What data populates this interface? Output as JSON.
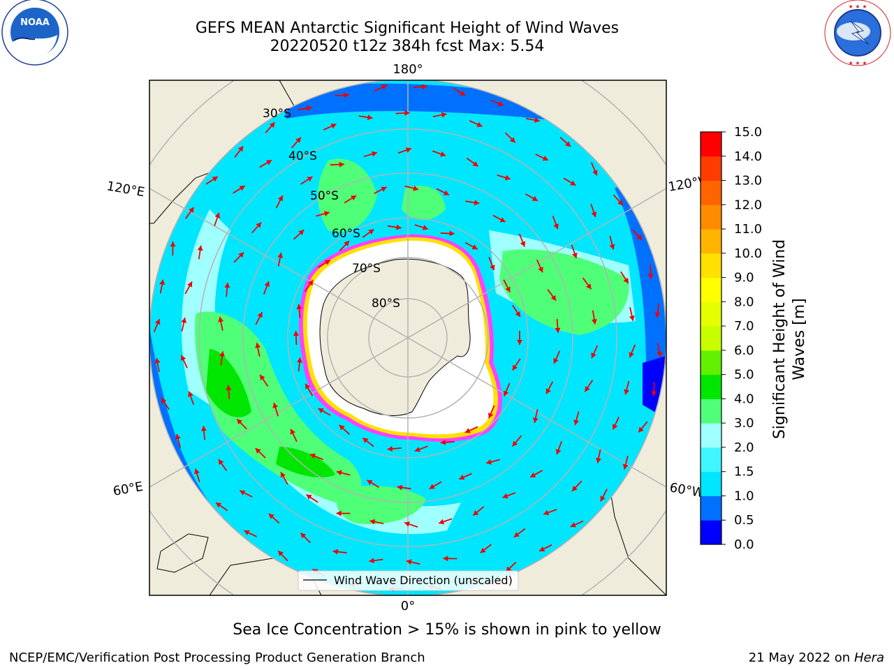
{
  "title": {
    "line1": "GEFS MEAN Antarctic Significant Height of Wind Waves",
    "line2": "20220520 t12z 384h fcst   Max: 5.54"
  },
  "logos": {
    "left": "NOAA",
    "left_ring": "NATIONAL OCEANIC AND ATMOSPHERIC ADMINISTRATION · U.S. DEPARTMENT OF COMMERCE",
    "right_ring": "NATIONAL WEATHER SERVICE"
  },
  "map": {
    "projection": "south-polar-stereographic",
    "lon_labels": {
      "top": "180°",
      "bottom": "0°",
      "left_upper": "120°E",
      "left_lower": "60°E",
      "right_upper": "120°W",
      "right_lower": "60°W"
    },
    "lat_labels": [
      "30°S",
      "40°S",
      "50°S",
      "60°S",
      "70°S",
      "80°S"
    ],
    "legend": "Wind Wave Direction (unscaled)",
    "colors": {
      "land": "#efecdc",
      "ice": "#ffffff",
      "ice_edge_outer": "#ff40ff",
      "ice_edge_inner": "#ffe000",
      "arrow": "#ee0000",
      "grid": "#b3b3b3"
    }
  },
  "colorbar": {
    "label_line1": "Significant Height of Wind",
    "label_line2": "Waves [m]",
    "ticks": [
      "0.0",
      "0.5",
      "1.0",
      "1.5",
      "2.0",
      "3.0",
      "4.0",
      "5.0",
      "6.0",
      "7.0",
      "8.0",
      "9.0",
      "10.0",
      "11.0",
      "12.0",
      "13.0",
      "14.0",
      "15.0"
    ],
    "colors": [
      "#0000ff",
      "#0070ff",
      "#00e6ff",
      "#40f6ff",
      "#a0ffff",
      "#50ff78",
      "#00e600",
      "#60f000",
      "#c8ff00",
      "#e6ff00",
      "#ffff00",
      "#ffe000",
      "#ffb400",
      "#ff8c00",
      "#ff6400",
      "#ff3c00",
      "#ff0000"
    ]
  },
  "caption": "Sea Ice Concentration > 15% is shown in pink to yellow",
  "footer": {
    "left": "NCEP/EMC/Verification Post Processing Product Generation Branch",
    "right_date": "21 May 2022 on",
    "right_system": "Hera"
  }
}
